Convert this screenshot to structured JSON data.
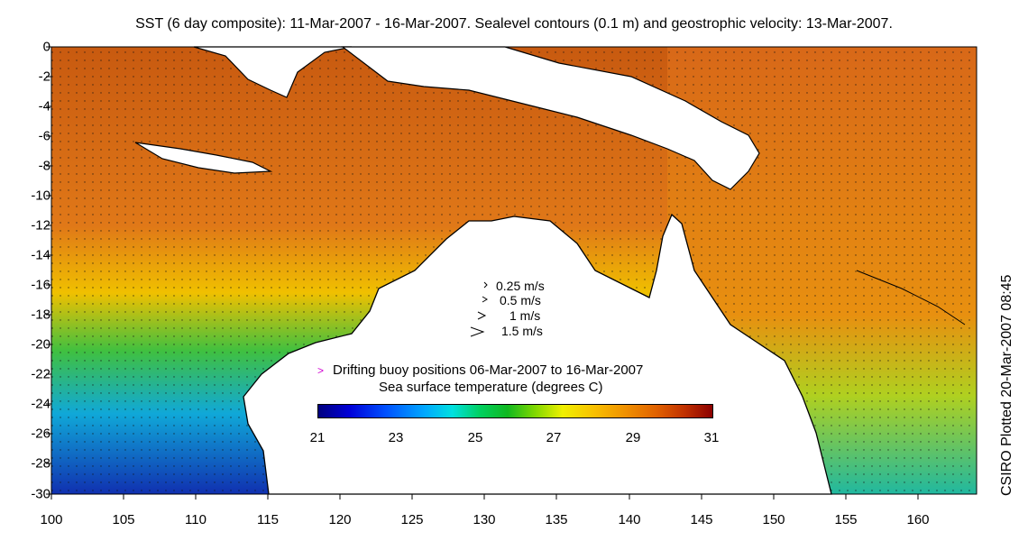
{
  "title": "SST (6 day composite): 11-Mar-2007 - 16-Mar-2007. Sealevel contours (0.1 m) and geostrophic velocity: 13-Mar-2007.",
  "side_label": "CSIRO Plotted 20-Mar-2007 08:45",
  "axes": {
    "x_ticks": [
      "100",
      "105",
      "110",
      "115",
      "120",
      "125",
      "130",
      "135",
      "140",
      "145",
      "150",
      "155",
      "160"
    ],
    "y_ticks": [
      "0",
      "-2",
      "-4",
      "-6",
      "-8",
      "-10",
      "-12",
      "-14",
      "-16",
      "-18",
      "-20",
      "-22",
      "-24",
      "-26",
      "-28",
      "-30"
    ],
    "xlim": [
      100,
      164
    ],
    "ylim": [
      -30,
      0
    ]
  },
  "velocity_legend": [
    "0.25 m/s",
    "0.5 m/s",
    "1 m/s",
    "1.5 m/s"
  ],
  "buoy_legend": {
    "marker": ">",
    "label": "Drifting buoy positions 06-Mar-2007 to 16-Mar-2007"
  },
  "colorbar": {
    "title": "Sea surface temperature (degrees C)",
    "ticks": [
      "21",
      "23",
      "25",
      "27",
      "29",
      "31"
    ],
    "min": 21,
    "max": 31
  },
  "colors": {
    "ocean_warm": "#d86010",
    "ocean_cool": "#10c060",
    "ocean_cold": "#1060e0",
    "land": "#ffffff",
    "buoy": "#d000d0"
  }
}
